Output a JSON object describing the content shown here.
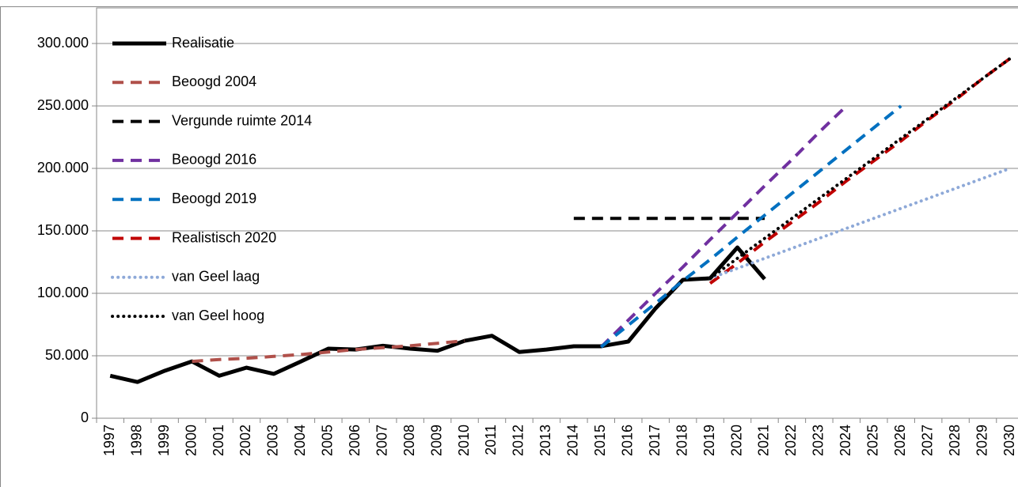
{
  "chart_data": {
    "type": "line",
    "categories": [
      "1997",
      "1998",
      "1999",
      "2000",
      "2001",
      "2002",
      "2003",
      "2004",
      "2005",
      "2006",
      "2007",
      "2008",
      "2009",
      "2010",
      "2011",
      "2012",
      "2013",
      "2014",
      "2015",
      "2016",
      "2017",
      "2018",
      "2019",
      "2020",
      "2021",
      "2022",
      "2023",
      "2024",
      "2025",
      "2026",
      "2027",
      "2028",
      "2029",
      "2030"
    ],
    "ylim": [
      0,
      300000
    ],
    "yticks": [
      0,
      {
        "value": 50000,
        "label": "50.000"
      },
      {
        "value": 100000,
        "label": "100.000"
      },
      {
        "value": 150000,
        "label": "150.000"
      },
      {
        "value": 200000,
        "label": "200.000"
      },
      {
        "value": 250000,
        "label": "250.000"
      },
      {
        "value": 300000,
        "label": "300.000"
      }
    ],
    "grid": true,
    "legend": "top-left",
    "series": [
      {
        "name": "Realisatie",
        "color": "#000000",
        "dash": "solid",
        "width": "thick",
        "values": [
          34000,
          29000,
          38000,
          45500,
          34000,
          40500,
          35500,
          45500,
          55700,
          55000,
          58000,
          55700,
          54000,
          62000,
          66000,
          53000,
          55000,
          57600,
          57600,
          61400,
          88000,
          110800,
          112000,
          136700,
          111400,
          null,
          null,
          null,
          null,
          null,
          null,
          null,
          null,
          null
        ]
      },
      {
        "name": "Beoogd 2004",
        "color": "#b0504a",
        "dash": "dash",
        "width": "normal",
        "values": [
          null,
          null,
          null,
          45500,
          47000,
          48000,
          49500,
          51000,
          53000,
          55000,
          56500,
          58000,
          60000,
          62000,
          null,
          null,
          null,
          null,
          null,
          null,
          null,
          null,
          null,
          null,
          null,
          null,
          null,
          null,
          null,
          null,
          null,
          null,
          null,
          null
        ]
      },
      {
        "name": "Vergunde ruimte 2014",
        "color": "#000000",
        "dash": "dash",
        "width": "normal",
        "values": [
          null,
          null,
          null,
          null,
          null,
          null,
          null,
          null,
          null,
          null,
          null,
          null,
          null,
          null,
          null,
          null,
          null,
          160000,
          160000,
          160000,
          160000,
          160000,
          160000,
          160000,
          160000,
          null,
          null,
          null,
          null,
          null,
          null,
          null,
          null,
          null
        ]
      },
      {
        "name": "Beoogd 2016",
        "color": "#7030a0",
        "dash": "dash",
        "width": "normal",
        "values": [
          null,
          null,
          null,
          null,
          null,
          null,
          null,
          null,
          null,
          null,
          null,
          null,
          null,
          null,
          null,
          null,
          null,
          null,
          57000,
          78500,
          100000,
          121000,
          143000,
          164500,
          186000,
          207000,
          229000,
          250000,
          null,
          null,
          null,
          null,
          null,
          null
        ]
      },
      {
        "name": "Beoogd 2019",
        "color": "#0070c0",
        "dash": "dash",
        "width": "normal",
        "values": [
          null,
          null,
          null,
          null,
          null,
          null,
          null,
          null,
          null,
          null,
          null,
          null,
          null,
          null,
          null,
          null,
          null,
          null,
          57000,
          74500,
          92000,
          110000,
          127000,
          145000,
          162500,
          180000,
          197500,
          215000,
          232500,
          250000,
          null,
          null,
          null,
          null
        ]
      },
      {
        "name": "Realistisch 2020",
        "color": "#c00000",
        "dash": "dash",
        "width": "normal",
        "values": [
          null,
          null,
          null,
          null,
          null,
          null,
          null,
          null,
          null,
          null,
          null,
          null,
          null,
          null,
          null,
          null,
          null,
          null,
          null,
          null,
          null,
          null,
          108000,
          124000,
          141000,
          157000,
          173000,
          190000,
          206000,
          222000,
          239000,
          255000,
          272000,
          288000
        ]
      },
      {
        "name": "van Geel laag",
        "color": "#8ea9d8",
        "dash": "dot",
        "width": "normal",
        "values": [
          null,
          null,
          null,
          null,
          null,
          null,
          null,
          null,
          null,
          null,
          null,
          null,
          null,
          null,
          null,
          null,
          null,
          null,
          null,
          null,
          null,
          null,
          112000,
          120000,
          128000,
          136000,
          144000,
          152000,
          160000,
          168000,
          176000,
          184000,
          192000,
          200000
        ]
      },
      {
        "name": "van Geel hoog",
        "color": "#000000",
        "dash": "dot",
        "width": "normal",
        "values": [
          null,
          null,
          null,
          null,
          null,
          null,
          null,
          null,
          null,
          null,
          null,
          null,
          null,
          null,
          null,
          null,
          null,
          null,
          null,
          null,
          null,
          null,
          112000,
          128000,
          144000,
          160000,
          176000,
          192000,
          208000,
          224000,
          240000,
          256000,
          272000,
          288000
        ]
      }
    ]
  }
}
